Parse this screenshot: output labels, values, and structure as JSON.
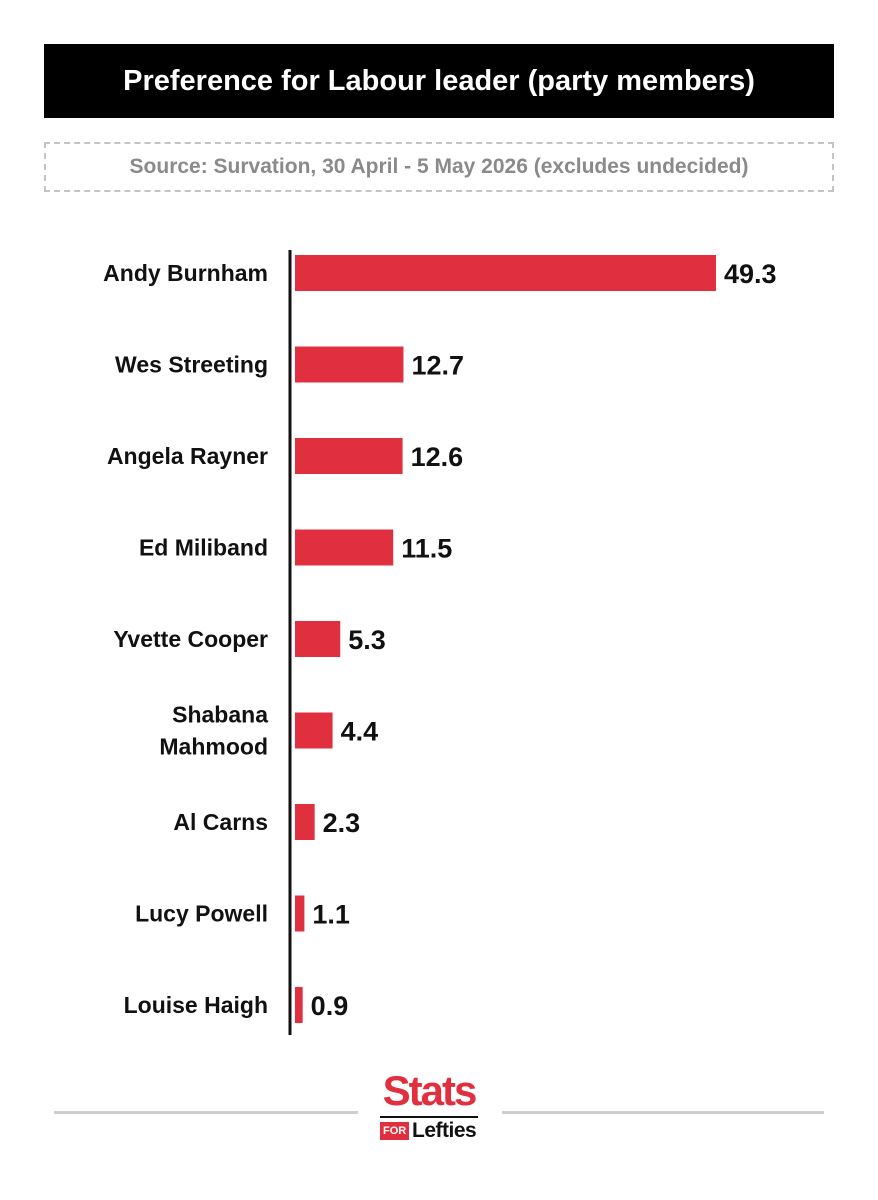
{
  "header": {
    "title": "Preference for Labour leader (party members)",
    "source": "Source: Survation, 30 April - 5 May 2026 (excludes undecided)"
  },
  "colors": {
    "bar": "#e0303f",
    "axis": "#111111",
    "title_bg": "#000000"
  },
  "chart_data": {
    "type": "bar",
    "orientation": "horizontal",
    "title": "Preference for Labour leader (party members)",
    "categories": [
      [
        "Andy Burnham"
      ],
      [
        "Wes Streeting"
      ],
      [
        "Angela Rayner"
      ],
      [
        "Ed Miliband"
      ],
      [
        "Yvette Cooper"
      ],
      [
        "Shabana",
        "Mahmood"
      ],
      [
        "Al Carns"
      ],
      [
        "Lucy Powell"
      ],
      [
        "Louise Haigh"
      ]
    ],
    "values": [
      49.3,
      12.7,
      12.6,
      11.5,
      5.3,
      4.4,
      2.3,
      1.1,
      0.9
    ],
    "value_labels": [
      "49.3",
      "12.7",
      "12.6",
      "11.5",
      "5.3",
      "4.4",
      "2.3",
      "1.1",
      "0.9"
    ],
    "xlim": [
      0,
      49.3
    ],
    "grid": false,
    "legend": "none"
  },
  "logo": {
    "stats": "Stats",
    "for": "FOR",
    "lefties": "Lefties"
  }
}
